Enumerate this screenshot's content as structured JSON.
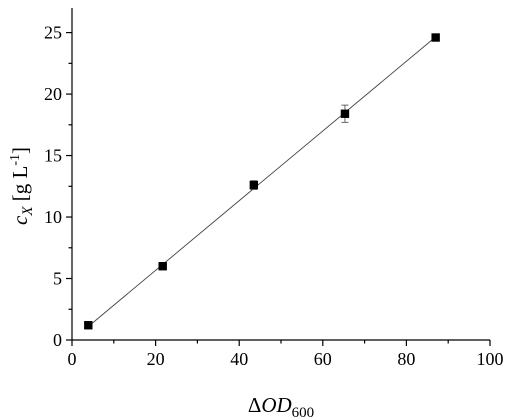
{
  "chart_data": {
    "type": "scatter",
    "title": "",
    "x_axis": {
      "label_main": "ΔOD",
      "label_sub": "600",
      "range": [
        0,
        100
      ],
      "major_ticks": [
        0,
        20,
        40,
        60,
        80,
        100
      ],
      "minor_ticks": [
        10,
        30,
        50,
        70,
        90
      ],
      "tick_labels": [
        "0",
        "20",
        "40",
        "60",
        "80",
        "100"
      ]
    },
    "y_axis": {
      "label_main": "c",
      "label_sub": "X",
      "label_unit_open": " [g L",
      "label_unit_sup": "-1",
      "label_unit_close": "]",
      "range": [
        0,
        27
      ],
      "major_ticks": [
        0,
        5,
        10,
        15,
        20,
        25
      ],
      "minor_ticks": [
        2.5,
        7.5,
        12.5,
        17.5,
        22.5
      ],
      "tick_labels": [
        "0",
        "5",
        "10",
        "15",
        "20",
        "25"
      ]
    },
    "series": [
      {
        "points": [
          {
            "x": 3.9,
            "y": 1.2,
            "err": 0.1
          },
          {
            "x": 21.7,
            "y": 6.0,
            "err": 0.1
          },
          {
            "x": 43.5,
            "y": 12.6,
            "err": 0.35
          },
          {
            "x": 65.3,
            "y": 18.4,
            "err": 0.7
          },
          {
            "x": 87.0,
            "y": 24.6,
            "err": 0.15
          }
        ]
      }
    ],
    "fit_line": {
      "x": [
        3.9,
        87.0
      ],
      "y": [
        1.1,
        24.65
      ]
    },
    "grid": false,
    "legend": "none"
  }
}
